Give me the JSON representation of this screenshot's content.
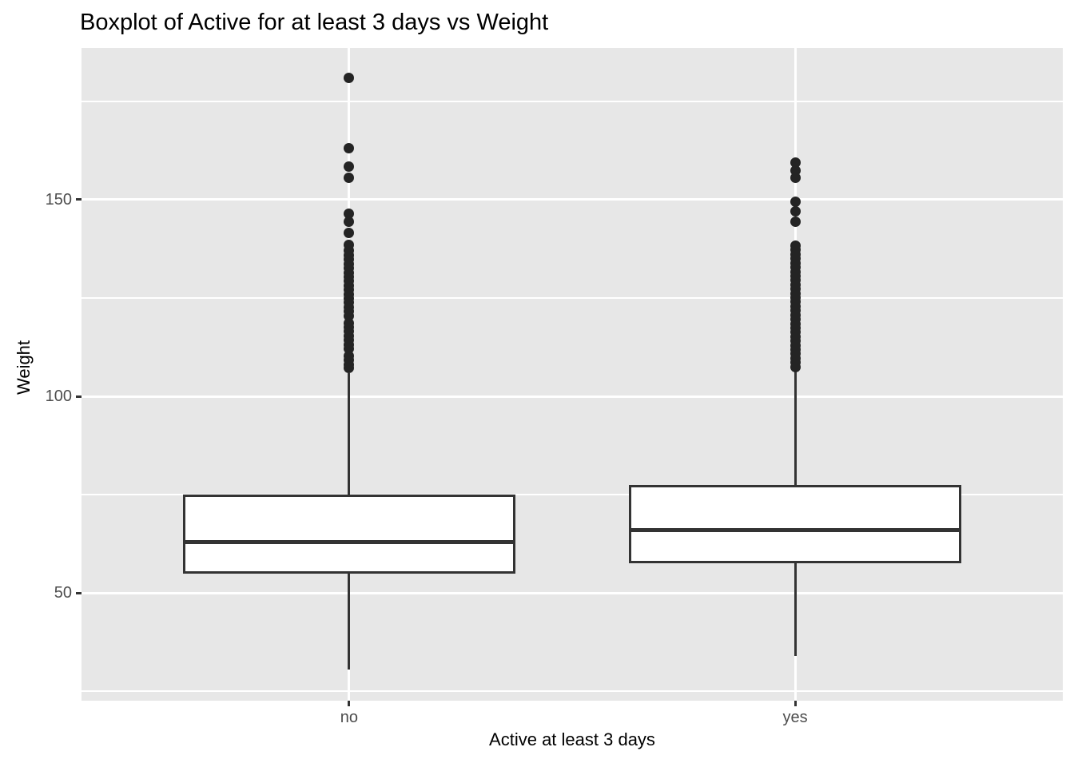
{
  "title": "Boxplot of Active for at least 3 days vs Weight",
  "colors": {
    "panel_bg": "#e7e7e7",
    "grid": "#ffffff",
    "box_fill": "#ffffff",
    "line": "#333333",
    "outlier_dot": "#242424",
    "tick_mark": "#333333",
    "tick_label": "#4d4d4d",
    "text": "#000000"
  },
  "chart_data": {
    "type": "boxplot",
    "title": "Boxplot of Active for at least 3 days vs Weight",
    "xlabel": "Active at least 3 days",
    "ylabel": "Weight",
    "categories": [
      "no",
      "yes"
    ],
    "ylim": [
      22.6,
      188.6
    ],
    "yticks": [
      50,
      100,
      150
    ],
    "yticks_minor": [
      25,
      75,
      125,
      175
    ],
    "grid": "white major+minor horizontal lines; white major vertical line at each category; grey panel background; no legend",
    "legend": "none",
    "series": [
      {
        "name": "no",
        "whisker_low": 30.5,
        "q1": 55,
        "median": 63,
        "q3": 75,
        "whisker_high": 106,
        "outliers": [
          181,
          163,
          158.5,
          155.5,
          146.5,
          144.5,
          141.5,
          138.5,
          137,
          135.9,
          134.8,
          133.7,
          132.6,
          131.5,
          130.4,
          129.3,
          128.2,
          127.1,
          126,
          124.9,
          123.8,
          122.7,
          121.6,
          120.4,
          118.7,
          117.6,
          116.5,
          115.4,
          114.3,
          113.2,
          112.1,
          110.3,
          109.2,
          108.1,
          107.2
        ]
      },
      {
        "name": "yes",
        "whisker_low": 34,
        "q1": 57.5,
        "median": 66,
        "q3": 77.5,
        "whisker_high": 107,
        "outliers": [
          159.5,
          157.5,
          155.5,
          149.5,
          147,
          144.5,
          138.3,
          137.2,
          136.1,
          135,
          133.9,
          132.8,
          131.7,
          130.6,
          129.5,
          128.4,
          127.3,
          126.2,
          125.1,
          124,
          122.9,
          121.8,
          120.7,
          119.6,
          118.5,
          117.4,
          116.3,
          115.2,
          114.1,
          113,
          111.9,
          110.8,
          109.7,
          108.6,
          107.5
        ]
      }
    ]
  }
}
